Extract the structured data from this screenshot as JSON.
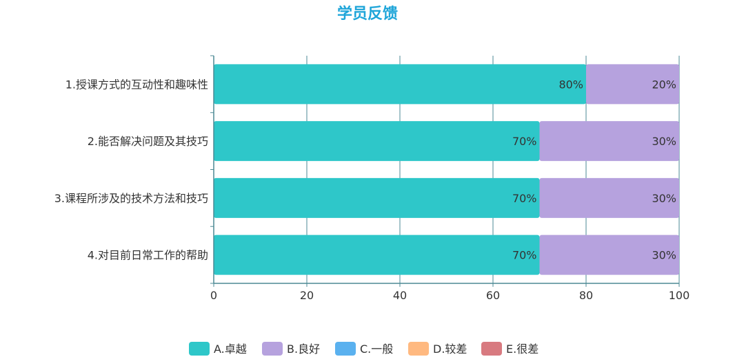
{
  "colors": {
    "A": "#2ec7c9",
    "B": "#b6a2de",
    "C": "#5ab1ef",
    "D": "#ffb980",
    "E": "#d87a80",
    "axis": "#4b8994",
    "title": "#1ea5d9"
  },
  "chart_data": {
    "type": "bar",
    "orientation": "horizontal",
    "stacked": true,
    "title": "学员反馈",
    "categories": [
      "1.授课方式的互动性和趣味性",
      "2.能否解决问题及其技巧",
      "3.课程所涉及的技术方法和技巧",
      "4.对目前日常工作的帮助"
    ],
    "series": [
      {
        "name": "A.卓越",
        "values": [
          80,
          70,
          70,
          70
        ],
        "labels": [
          "80%",
          "70%",
          "70%",
          "70%"
        ]
      },
      {
        "name": "B.良好",
        "values": [
          20,
          30,
          30,
          30
        ],
        "labels": [
          "20%",
          "30%",
          "30%",
          "30%"
        ]
      },
      {
        "name": "C.一般",
        "values": [
          0,
          0,
          0,
          0
        ]
      },
      {
        "name": "D.较差",
        "values": [
          0,
          0,
          0,
          0
        ]
      },
      {
        "name": "E.很差",
        "values": [
          0,
          0,
          0,
          0
        ]
      }
    ],
    "xlim": [
      0,
      100
    ],
    "xticks": [
      "0",
      "20",
      "40",
      "60",
      "80",
      "100"
    ],
    "grid": true,
    "legend_position": "bottom"
  }
}
